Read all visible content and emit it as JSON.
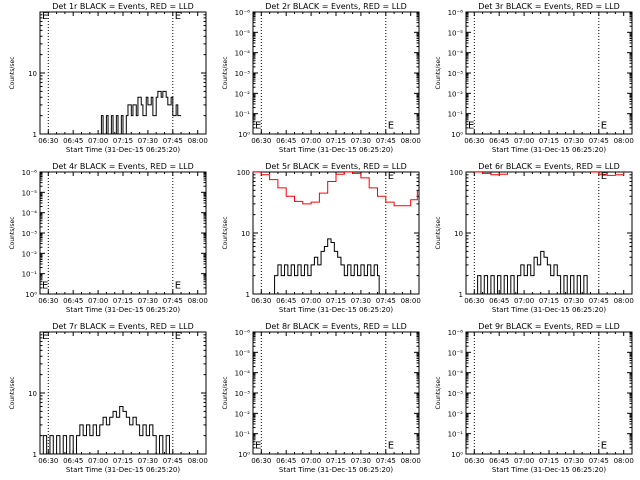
{
  "figure": {
    "x_ticks": [
      "06:30",
      "06:45",
      "07:00",
      "07:15",
      "07:30",
      "07:45",
      "08:00"
    ],
    "xlabel": "Start Time (31-Dec-15 06:25:20)",
    "ylabel": "Counts/sec",
    "event_marker": "E"
  },
  "chart_data": [
    {
      "type": "line",
      "title": "Det 1r BLACK = Events, RED = LLD",
      "y_scale": "log",
      "ylim": [
        1,
        100
      ],
      "y_ticks": [
        "1",
        "10"
      ],
      "xlim_min": [
        -5,
        95
      ],
      "dotted_lines_min": [
        0,
        75
      ],
      "event_marks": [
        {
          "x_min": -5,
          "y": 90
        },
        {
          "x_min": 75,
          "y": 90
        }
      ],
      "series": [
        {
          "color": "#000000",
          "points": [
            [
              30,
              1
            ],
            [
              32,
              2
            ],
            [
              33,
              1
            ],
            [
              35,
              2
            ],
            [
              36,
              1
            ],
            [
              38,
              2
            ],
            [
              39,
              1
            ],
            [
              41,
              2
            ],
            [
              42,
              1
            ],
            [
              44,
              2
            ],
            [
              45,
              1
            ],
            [
              47,
              2
            ],
            [
              48,
              3
            ],
            [
              50,
              2
            ],
            [
              51,
              3
            ],
            [
              53,
              2
            ],
            [
              54,
              4
            ],
            [
              56,
              3
            ],
            [
              57,
              2
            ],
            [
              59,
              4
            ],
            [
              60,
              3
            ],
            [
              62,
              4
            ],
            [
              63,
              2
            ],
            [
              65,
              4
            ],
            [
              66,
              5
            ],
            [
              68,
              4
            ],
            [
              69,
              5
            ],
            [
              71,
              4
            ],
            [
              72,
              3
            ],
            [
              74,
              4
            ],
            [
              75,
              2
            ],
            [
              77,
              3
            ],
            [
              78,
              2
            ],
            [
              80,
              2
            ]
          ]
        }
      ]
    },
    {
      "type": "line",
      "title": "Det 2r BLACK = Events, RED = LLD",
      "y_scale": "log",
      "ylim": [
        1,
        1000000
      ],
      "y_ticks": [
        "10⁰",
        "10⁻¹",
        "10⁻²",
        "10⁻³",
        "10⁻⁴",
        "10⁻⁵",
        "10⁻⁶"
      ],
      "xlim_min": [
        -5,
        95
      ],
      "dotted_lines_min": [
        0,
        75
      ],
      "event_marks": [
        {
          "x_min": -5,
          "y": 3
        },
        {
          "x_min": 75,
          "y": 3
        }
      ],
      "series": []
    },
    {
      "type": "line",
      "title": "Det 3r BLACK = Events, RED = LLD",
      "y_scale": "log",
      "ylim": [
        1,
        1000000
      ],
      "y_ticks": [
        "10⁰",
        "10⁻¹",
        "10⁻²",
        "10⁻³",
        "10⁻⁴",
        "10⁻⁵",
        "10⁻⁶"
      ],
      "xlim_min": [
        -5,
        95
      ],
      "dotted_lines_min": [
        0,
        75
      ],
      "event_marks": [
        {
          "x_min": -5,
          "y": 3
        },
        {
          "x_min": 75,
          "y": 3
        }
      ],
      "series": []
    },
    {
      "type": "line",
      "title": "Det 4r BLACK = Events, RED = LLD",
      "y_scale": "log",
      "ylim": [
        1,
        1000000
      ],
      "y_ticks": [
        "10⁰",
        "10⁻¹",
        "10⁻²",
        "10⁻³",
        "10⁻⁴",
        "10⁻⁵",
        "10⁻⁶"
      ],
      "xlim_min": [
        -5,
        95
      ],
      "dotted_lines_min": [
        0,
        75
      ],
      "event_marks": [
        {
          "x_min": -5,
          "y": 3
        },
        {
          "x_min": 75,
          "y": 3
        }
      ],
      "series": []
    },
    {
      "type": "line",
      "title": "Det 5r BLACK = Events, RED = LLD",
      "y_scale": "log",
      "ylim": [
        1,
        100
      ],
      "y_ticks": [
        "1",
        "10",
        "100"
      ],
      "xlim_min": [
        -5,
        95
      ],
      "dotted_lines_min": [
        0,
        75
      ],
      "event_marks": [
        {
          "x_min": 75,
          "y": 90
        }
      ],
      "series": [
        {
          "color": "#ff0000",
          "points": [
            [
              -5,
              100
            ],
            [
              0,
              90
            ],
            [
              5,
              75
            ],
            [
              10,
              55
            ],
            [
              15,
              40
            ],
            [
              20,
              33
            ],
            [
              25,
              30
            ],
            [
              30,
              32
            ],
            [
              35,
              45
            ],
            [
              40,
              70
            ],
            [
              45,
              92
            ],
            [
              50,
              100
            ],
            [
              55,
              95
            ],
            [
              60,
              80
            ],
            [
              65,
              55
            ],
            [
              70,
              40
            ],
            [
              75,
              32
            ],
            [
              80,
              28
            ],
            [
              85,
              28
            ],
            [
              90,
              35
            ],
            [
              94,
              50
            ]
          ]
        },
        {
          "color": "#000000",
          "points": [
            [
              6,
              1
            ],
            [
              8,
              2
            ],
            [
              10,
              3
            ],
            [
              12,
              2
            ],
            [
              14,
              3
            ],
            [
              16,
              2
            ],
            [
              18,
              3
            ],
            [
              20,
              2
            ],
            [
              22,
              3
            ],
            [
              24,
              2
            ],
            [
              26,
              3
            ],
            [
              28,
              2
            ],
            [
              30,
              3
            ],
            [
              32,
              4
            ],
            [
              34,
              3
            ],
            [
              36,
              5
            ],
            [
              38,
              6
            ],
            [
              40,
              8
            ],
            [
              42,
              7
            ],
            [
              44,
              5
            ],
            [
              46,
              4
            ],
            [
              48,
              3
            ],
            [
              50,
              2
            ],
            [
              52,
              3
            ],
            [
              54,
              2
            ],
            [
              56,
              3
            ],
            [
              58,
              2
            ],
            [
              60,
              3
            ],
            [
              62,
              2
            ],
            [
              64,
              3
            ],
            [
              66,
              2
            ],
            [
              68,
              3
            ],
            [
              70,
              2
            ],
            [
              71,
              1
            ]
          ]
        }
      ]
    },
    {
      "type": "line",
      "title": "Det 6r BLACK = Events, RED = LLD",
      "y_scale": "log",
      "ylim": [
        1,
        100
      ],
      "y_ticks": [
        "1",
        "10",
        "100"
      ],
      "xlim_min": [
        -5,
        95
      ],
      "dotted_lines_min": [
        0,
        75
      ],
      "event_marks": [
        {
          "x_min": 75,
          "y": 90
        }
      ],
      "series": [
        {
          "color": "#ff0000",
          "points": [
            [
              0,
              100
            ],
            [
              5,
              95
            ],
            [
              10,
              90
            ],
            [
              15,
              92
            ],
            [
              20,
              100
            ]
          ]
        },
        {
          "color": "#ff0000",
          "points": [
            [
              70,
              100
            ],
            [
              75,
              92
            ],
            [
              80,
              88
            ],
            [
              85,
              90
            ],
            [
              90,
              100
            ]
          ]
        },
        {
          "color": "#000000",
          "points": [
            [
              0,
              1
            ],
            [
              2,
              2
            ],
            [
              4,
              1
            ],
            [
              6,
              2
            ],
            [
              8,
              1
            ],
            [
              10,
              2
            ],
            [
              12,
              1
            ],
            [
              14,
              2
            ],
            [
              16,
              1
            ],
            [
              18,
              2
            ],
            [
              20,
              1
            ],
            [
              22,
              2
            ],
            [
              24,
              1
            ],
            [
              26,
              2
            ],
            [
              28,
              3
            ],
            [
              30,
              2
            ],
            [
              32,
              3
            ],
            [
              34,
              2
            ],
            [
              36,
              4
            ],
            [
              38,
              3
            ],
            [
              40,
              5
            ],
            [
              42,
              4
            ],
            [
              44,
              3
            ],
            [
              46,
              2
            ],
            [
              48,
              3
            ],
            [
              50,
              2
            ],
            [
              52,
              1
            ],
            [
              54,
              2
            ],
            [
              56,
              1
            ],
            [
              58,
              2
            ],
            [
              60,
              1
            ],
            [
              62,
              2
            ],
            [
              64,
              1
            ],
            [
              66,
              2
            ],
            [
              68,
              1
            ]
          ]
        }
      ]
    },
    {
      "type": "line",
      "title": "Det 7r BLACK = Events, RED = LLD",
      "y_scale": "log",
      "ylim": [
        1,
        100
      ],
      "y_ticks": [
        "1",
        "10"
      ],
      "xlim_min": [
        -5,
        95
      ],
      "dotted_lines_min": [
        0,
        75
      ],
      "event_marks": [
        {
          "x_min": -5,
          "y": 90
        },
        {
          "x_min": 75,
          "y": 90
        }
      ],
      "series": [
        {
          "color": "#000000",
          "points": [
            [
              -5,
              1
            ],
            [
              -3,
              2
            ],
            [
              -1,
              1
            ],
            [
              1,
              2
            ],
            [
              3,
              1
            ],
            [
              5,
              2
            ],
            [
              7,
              1
            ],
            [
              9,
              2
            ],
            [
              11,
              1
            ],
            [
              13,
              2
            ],
            [
              15,
              1
            ],
            [
              17,
              2
            ],
            [
              19,
              3
            ],
            [
              21,
              2
            ],
            [
              23,
              3
            ],
            [
              25,
              2
            ],
            [
              27,
              3
            ],
            [
              29,
              2
            ],
            [
              31,
              3
            ],
            [
              33,
              4
            ],
            [
              35,
              3
            ],
            [
              37,
              4
            ],
            [
              39,
              5
            ],
            [
              41,
              4
            ],
            [
              43,
              6
            ],
            [
              45,
              5
            ],
            [
              47,
              4
            ],
            [
              49,
              3
            ],
            [
              51,
              4
            ],
            [
              53,
              3
            ],
            [
              55,
              2
            ],
            [
              57,
              3
            ],
            [
              59,
              2
            ],
            [
              61,
              3
            ],
            [
              63,
              2
            ],
            [
              65,
              1
            ],
            [
              67,
              2
            ],
            [
              69,
              1
            ],
            [
              71,
              2
            ],
            [
              73,
              1
            ]
          ]
        }
      ]
    },
    {
      "type": "line",
      "title": "Det 8r BLACK = Events, RED = LLD",
      "y_scale": "log",
      "ylim": [
        1,
        1000000
      ],
      "y_ticks": [
        "10⁰",
        "10⁻¹",
        "10⁻²",
        "10⁻³",
        "10⁻⁴",
        "10⁻⁵",
        "10⁻⁶"
      ],
      "xlim_min": [
        -5,
        95
      ],
      "dotted_lines_min": [
        0,
        75
      ],
      "event_marks": [
        {
          "x_min": -5,
          "y": 3
        },
        {
          "x_min": 75,
          "y": 3
        }
      ],
      "series": []
    },
    {
      "type": "line",
      "title": "Det 9r BLACK = Events, RED = LLD",
      "y_scale": "log",
      "ylim": [
        1,
        1000000
      ],
      "y_ticks": [
        "10⁰",
        "10⁻¹",
        "10⁻²",
        "10⁻³",
        "10⁻⁴",
        "10⁻⁵",
        "10⁻⁶"
      ],
      "xlim_min": [
        -5,
        95
      ],
      "dotted_lines_min": [
        0,
        75
      ],
      "event_marks": [
        {
          "x_min": 75,
          "y": 3
        }
      ],
      "series": []
    }
  ]
}
